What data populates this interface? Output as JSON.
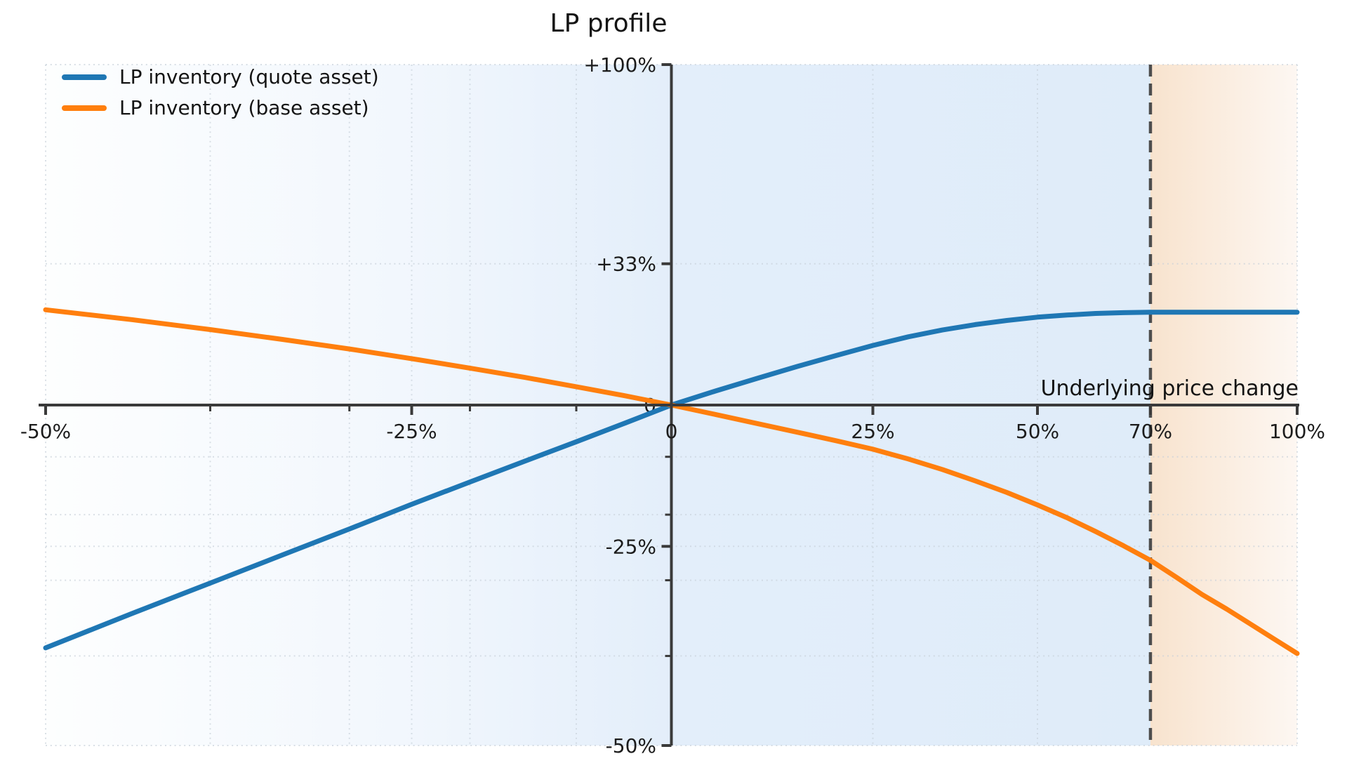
{
  "chart_data": {
    "type": "line",
    "title": "LP profile",
    "xlabel": "Underlying price change",
    "x_scale": "log1p_percent",
    "y_scale": "log1p_percent",
    "xlim": [
      -50,
      100
    ],
    "ylim": [
      -50,
      100
    ],
    "grid": "dotted-both",
    "x_ticks": [
      {
        "value": -50,
        "label": "-50%"
      },
      {
        "value": -25,
        "label": "-25%"
      },
      {
        "value": 0,
        "label": "0"
      },
      {
        "value": 25,
        "label": "25%"
      },
      {
        "value": 50,
        "label": "50%"
      },
      {
        "value": 70,
        "label": "70%"
      },
      {
        "value": 100,
        "label": "100%"
      }
    ],
    "x_minor_ticks": [
      -40,
      -30,
      -20,
      -10
    ],
    "y_ticks": [
      {
        "value": 100,
        "label": "+100%"
      },
      {
        "value": 33.33,
        "label": "+33%"
      },
      {
        "value": 0,
        "label": "0"
      },
      {
        "value": -25,
        "label": "-25%"
      },
      {
        "value": -50,
        "label": "-50%"
      }
    ],
    "y_minor_ticks": [
      -10,
      -20,
      -30,
      -40
    ],
    "vline": {
      "x": 70,
      "style": "dashed",
      "color": "#4d4d4d"
    },
    "regions": [
      {
        "from": -50,
        "to": 70,
        "name": "in-range-zone",
        "colors": [
          "#fdfefe",
          "#f2f7fd",
          "#e3eefa",
          "#dfecf9"
        ]
      },
      {
        "from": 70,
        "to": 100,
        "name": "above-range-zone",
        "colors": [
          "#f8e3ce",
          "#fdf7f2"
        ]
      }
    ],
    "legend": {
      "position": "top-left",
      "entries": [
        {
          "label": "LP inventory (quote asset)",
          "color": "#1f77b4"
        },
        {
          "label": "LP inventory (base asset)",
          "color": "#ff7f0e"
        }
      ]
    },
    "series": [
      {
        "name": "LP inventory (quote asset)",
        "color": "#1f77b4",
        "points": [
          [
            -50,
            -39
          ],
          [
            -45,
            -34.6
          ],
          [
            -40,
            -30.4
          ],
          [
            -35,
            -26.3
          ],
          [
            -30,
            -22.3
          ],
          [
            -25,
            -18.3
          ],
          [
            -20,
            -14.5
          ],
          [
            -15,
            -10.8
          ],
          [
            -10,
            -7.2
          ],
          [
            -5,
            -3.6
          ],
          [
            0,
            0
          ],
          [
            5,
            2.9
          ],
          [
            10,
            5.6
          ],
          [
            15,
            8.2
          ],
          [
            20,
            10.6
          ],
          [
            25,
            12.9
          ],
          [
            30,
            14.9
          ],
          [
            35,
            16.5
          ],
          [
            40,
            17.8
          ],
          [
            45,
            18.8
          ],
          [
            50,
            19.6
          ],
          [
            55,
            20.1
          ],
          [
            60,
            20.5
          ],
          [
            65,
            20.7
          ],
          [
            70,
            20.8
          ],
          [
            80,
            20.8
          ],
          [
            90,
            20.8
          ],
          [
            100,
            20.8
          ]
        ]
      },
      {
        "name": "LP inventory (base asset)",
        "color": "#ff7f0e",
        "points": [
          [
            -50,
            21.4
          ],
          [
            -45,
            19.0
          ],
          [
            -40,
            16.6
          ],
          [
            -35,
            14.3
          ],
          [
            -30,
            12.1
          ],
          [
            -25,
            9.9
          ],
          [
            -20,
            7.8
          ],
          [
            -15,
            5.8
          ],
          [
            -10,
            3.8
          ],
          [
            -5,
            1.9
          ],
          [
            0,
            0
          ],
          [
            5,
            -1.9
          ],
          [
            10,
            -3.7
          ],
          [
            15,
            -5.4
          ],
          [
            20,
            -7.0
          ],
          [
            25,
            -8.6
          ],
          [
            30,
            -10.4
          ],
          [
            35,
            -12.3
          ],
          [
            40,
            -14.3
          ],
          [
            45,
            -16.3
          ],
          [
            50,
            -18.4
          ],
          [
            55,
            -20.5
          ],
          [
            60,
            -22.7
          ],
          [
            65,
            -24.9
          ],
          [
            70,
            -27.1
          ],
          [
            75,
            -29.6
          ],
          [
            80,
            -32.0
          ],
          [
            85,
            -34.0
          ],
          [
            90,
            -36.0
          ],
          [
            95,
            -37.9
          ],
          [
            100,
            -39.7
          ]
        ]
      }
    ]
  }
}
